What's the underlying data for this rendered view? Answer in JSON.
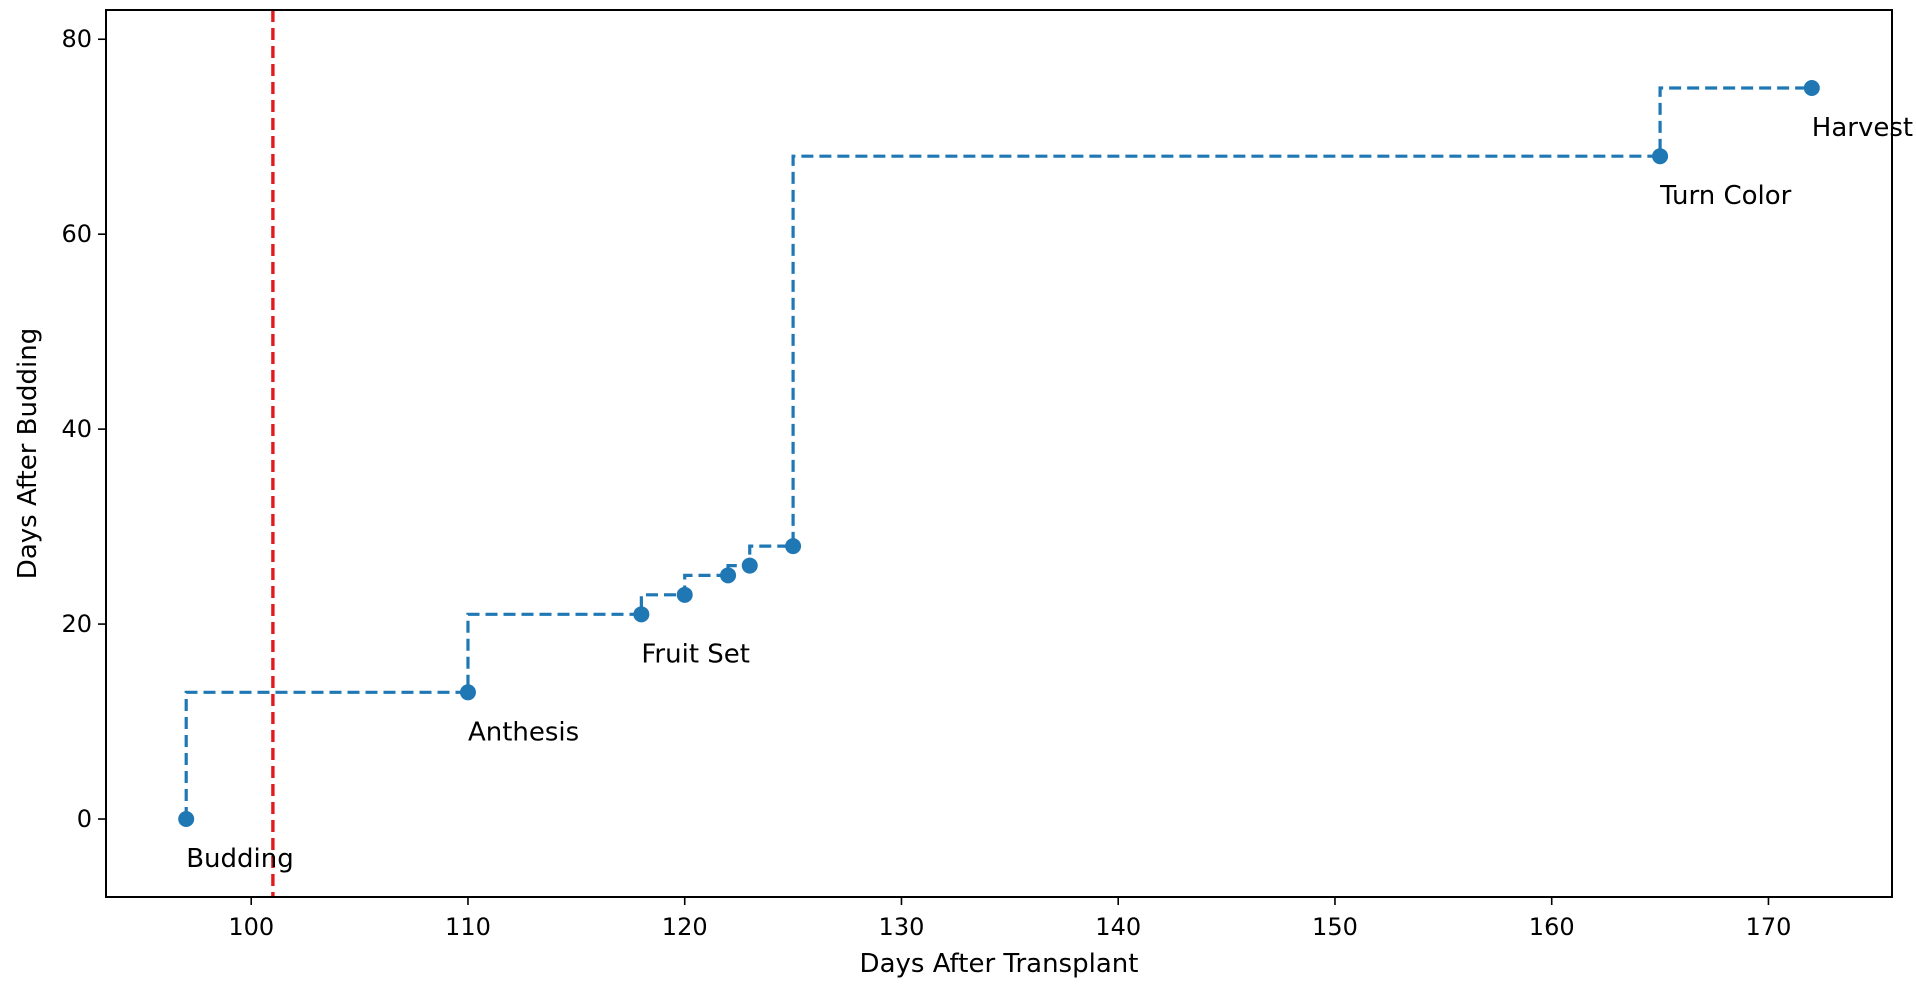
{
  "chart_data": {
    "type": "scatter",
    "title": "",
    "xlabel": "Days After Transplant",
    "ylabel": "Days After Budding",
    "xlim": [
      93.3,
      175.7
    ],
    "ylim": [
      -8,
      83
    ],
    "xticks": [
      100,
      110,
      120,
      130,
      140,
      150,
      160,
      170
    ],
    "yticks": [
      0,
      20,
      40,
      60,
      80
    ],
    "grid": false,
    "legend": "none",
    "series": [
      {
        "style": "steps-post dashed with markers",
        "color": "#1f77b4",
        "points": [
          {
            "x": 97,
            "y": 0,
            "label": "Budding"
          },
          {
            "x": 110,
            "y": 13,
            "label": "Anthesis"
          },
          {
            "x": 118,
            "y": 21,
            "label": "Fruit Set"
          },
          {
            "x": 120,
            "y": 23,
            "label": ""
          },
          {
            "x": 122,
            "y": 25,
            "label": ""
          },
          {
            "x": 123,
            "y": 26,
            "label": ""
          },
          {
            "x": 125,
            "y": 28,
            "label": ""
          },
          {
            "x": 165,
            "y": 68,
            "label": "Turn Color"
          },
          {
            "x": 172,
            "y": 75,
            "label": "Harvest"
          }
        ]
      }
    ],
    "reference_lines": [
      {
        "orientation": "vertical",
        "x": 101,
        "color": "#e31a1c",
        "style": "dashed"
      }
    ]
  }
}
